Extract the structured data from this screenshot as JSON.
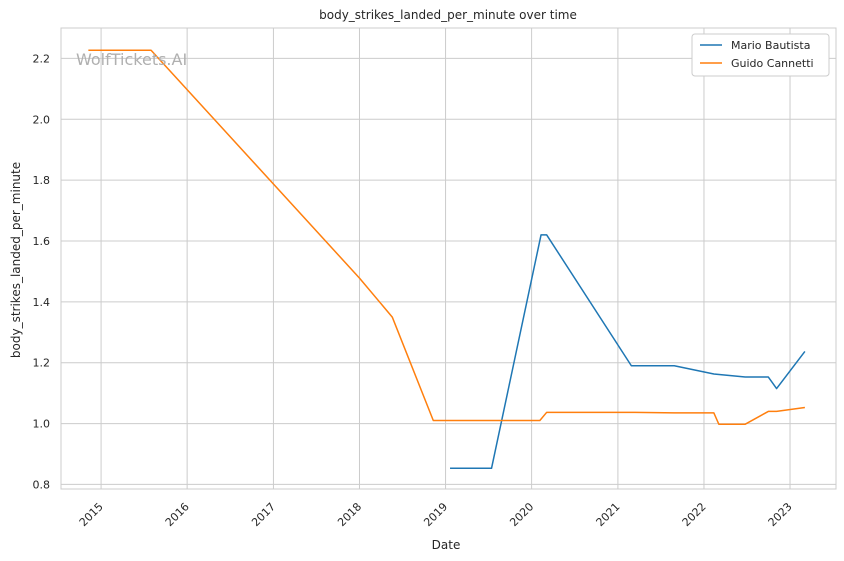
{
  "chart_data": {
    "type": "line",
    "title": "body_strikes_landed_per_minute over time",
    "xlabel": "Date",
    "ylabel": "body_strikes_landed_per_minute",
    "watermark": "WolfTickets.AI",
    "xlim": [
      "2014-07-15",
      "2023-07-15"
    ],
    "ylim": [
      0.785,
      2.3
    ],
    "x_ticks": [
      "2015",
      "2016",
      "2017",
      "2018",
      "2019",
      "2020",
      "2021",
      "2022",
      "2023"
    ],
    "y_ticks": [
      "0.8",
      "1.0",
      "1.2",
      "1.4",
      "1.6",
      "1.8",
      "2.0",
      "2.2"
    ],
    "grid": true,
    "legend_position": "top-right",
    "series": [
      {
        "name": "Mario Bautista",
        "color": "#1f77b4",
        "points": [
          [
            "2019-01-20",
            0.853
          ],
          [
            "2019-07-15",
            0.853
          ],
          [
            "2020-02-10",
            1.62
          ],
          [
            "2020-03-05",
            1.62
          ],
          [
            "2021-02-27",
            1.19
          ],
          [
            "2021-08-28",
            1.19
          ],
          [
            "2022-02-12",
            1.163
          ],
          [
            "2022-06-25",
            1.153
          ],
          [
            "2022-10-01",
            1.153
          ],
          [
            "2022-11-05",
            1.115
          ],
          [
            "2023-03-05",
            1.237
          ]
        ]
      },
      {
        "name": "Guido Cannetti",
        "color": "#ff7f0e",
        "points": [
          [
            "2014-11-08",
            2.227
          ],
          [
            "2015-08-01",
            2.227
          ],
          [
            "2018-01-01",
            1.478
          ],
          [
            "2018-05-20",
            1.35
          ],
          [
            "2018-11-10",
            1.01
          ],
          [
            "2020-02-05",
            1.01
          ],
          [
            "2020-03-05",
            1.037
          ],
          [
            "2021-02-27",
            1.037
          ],
          [
            "2021-08-28",
            1.035
          ],
          [
            "2022-02-12",
            1.035
          ],
          [
            "2022-03-05",
            0.998
          ],
          [
            "2022-06-25",
            0.998
          ],
          [
            "2022-10-01",
            1.04
          ],
          [
            "2022-11-05",
            1.04
          ],
          [
            "2023-03-05",
            1.053
          ]
        ]
      }
    ]
  }
}
